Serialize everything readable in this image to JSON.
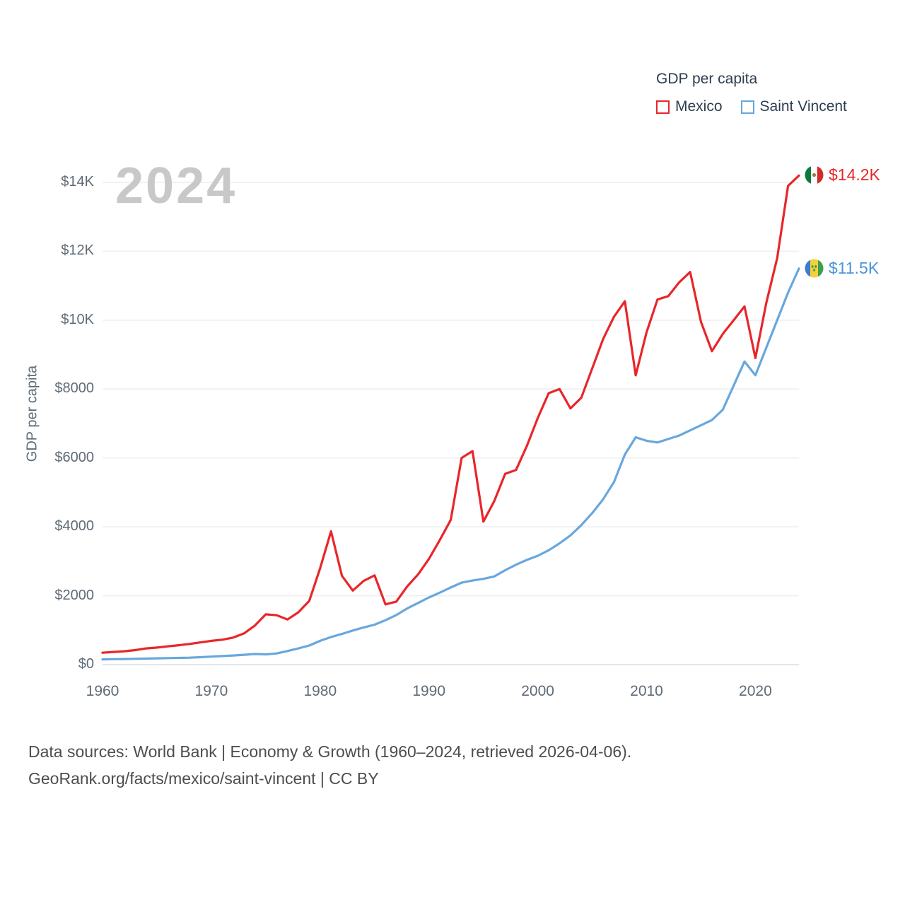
{
  "watermark": "2024",
  "legend": {
    "title": "GDP per capita",
    "items": [
      {
        "label": "Mexico",
        "color": "#e8262a"
      },
      {
        "label": "Saint Vincent",
        "color": "#68a7dd"
      }
    ]
  },
  "chart_data": {
    "type": "line",
    "title": "GDP per capita",
    "xlabel": "",
    "ylabel": "GDP per capita",
    "grid": true,
    "legend_position": "top-right",
    "x_range": [
      1960,
      2024
    ],
    "ylim": [
      0,
      14580
    ],
    "x_ticks": [
      1960,
      1970,
      1980,
      1990,
      2000,
      2010,
      2020
    ],
    "y_ticks": [
      {
        "value": 0,
        "label": "$0"
      },
      {
        "value": 2000,
        "label": "$2000"
      },
      {
        "value": 4000,
        "label": "$4000"
      },
      {
        "value": 6000,
        "label": "$6000"
      },
      {
        "value": 8000,
        "label": "$8000"
      },
      {
        "value": 10000,
        "label": "$10K"
      },
      {
        "value": 12000,
        "label": "$12K"
      },
      {
        "value": 14000,
        "label": "$14K"
      }
    ],
    "x": [
      1960,
      1961,
      1962,
      1963,
      1964,
      1965,
      1966,
      1967,
      1968,
      1969,
      1970,
      1971,
      1972,
      1973,
      1974,
      1975,
      1976,
      1977,
      1978,
      1979,
      1980,
      1981,
      1982,
      1983,
      1984,
      1985,
      1986,
      1987,
      1988,
      1989,
      1990,
      1991,
      1992,
      1993,
      1994,
      1995,
      1996,
      1997,
      1998,
      1999,
      2000,
      2001,
      2002,
      2003,
      2004,
      2005,
      2006,
      2007,
      2008,
      2009,
      2010,
      2011,
      2012,
      2013,
      2014,
      2015,
      2016,
      2017,
      2018,
      2019,
      2020,
      2021,
      2022,
      2023,
      2024
    ],
    "series": [
      {
        "name": "Mexico",
        "color": "#e8262a",
        "label_color": "#e8262a",
        "flag": "mexico",
        "end_label": "$14.2K",
        "values": [
          345,
          367,
          387,
          420,
          470,
          494,
          529,
          562,
          600,
          644,
          690,
          722,
          784,
          906,
          1133,
          1460,
          1435,
          1310,
          1520,
          1850,
          2800,
          3870,
          2580,
          2150,
          2430,
          2590,
          1750,
          1830,
          2270,
          2620,
          3070,
          3620,
          4200,
          6000,
          6200,
          4150,
          4750,
          5540,
          5650,
          6350,
          7160,
          7880,
          8000,
          7440,
          7750,
          8600,
          9450,
          10100,
          10550,
          8400,
          9650,
          10600,
          10700,
          11100,
          11400,
          9950,
          9100,
          9600,
          10000,
          10400,
          8900,
          10500,
          11800,
          13900,
          14200
        ]
      },
      {
        "name": "Saint Vincent",
        "color": "#68a7dd",
        "label_color": "#4a94d8",
        "flag": "saint-vincent",
        "end_label": "$11.5K",
        "values": [
          152,
          158,
          163,
          168,
          175,
          182,
          188,
          194,
          202,
          215,
          232,
          248,
          265,
          285,
          308,
          298,
          325,
          395,
          470,
          555,
          690,
          800,
          890,
          990,
          1080,
          1160,
          1290,
          1440,
          1630,
          1790,
          1950,
          2090,
          2240,
          2380,
          2440,
          2490,
          2560,
          2740,
          2900,
          3040,
          3160,
          3320,
          3520,
          3750,
          4050,
          4400,
          4800,
          5300,
          6100,
          6600,
          6500,
          6450,
          6550,
          6650,
          6800,
          6950,
          7100,
          7400,
          8100,
          8800,
          8400,
          9200,
          10000,
          10800,
          11500
        ]
      }
    ]
  },
  "footer": {
    "line1": "Data sources: World Bank | Economy & Growth (1960–2024, retrieved 2026-04-06).",
    "line2": "GeoRank.org/facts/mexico/saint-vincent | CC BY"
  }
}
